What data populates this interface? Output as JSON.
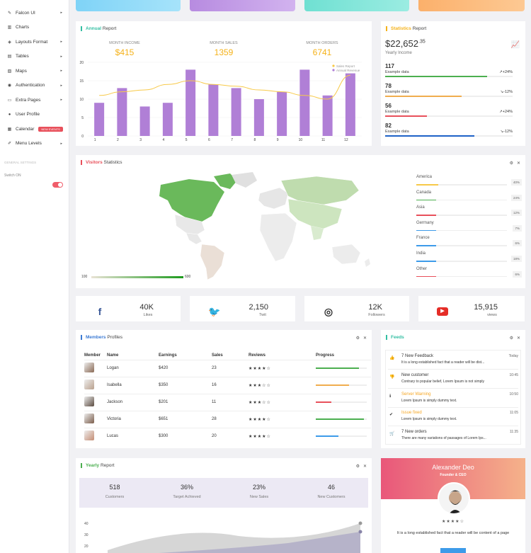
{
  "sidebar": {
    "items": [
      {
        "label": "Falcon UI",
        "icon": "feather-icon",
        "arrow": true
      },
      {
        "label": "Charts",
        "icon": "bar-chart-icon",
        "arrow": false
      },
      {
        "label": "Layouts Format",
        "icon": "layers-icon",
        "arrow": true
      },
      {
        "label": "Tables",
        "icon": "table-icon",
        "arrow": true
      },
      {
        "label": "Maps",
        "icon": "map-icon",
        "arrow": true
      },
      {
        "label": "Authentication",
        "icon": "globe-icon",
        "arrow": true
      },
      {
        "label": "Extra Pages",
        "icon": "monitor-icon",
        "arrow": true
      },
      {
        "label": "User Profile",
        "icon": "user-icon",
        "arrow": false
      },
      {
        "label": "Calendar",
        "icon": "calendar-icon",
        "arrow": false,
        "badge": "NEW EVENTS"
      },
      {
        "label": "Menu Levels",
        "icon": "pencil-icon",
        "arrow": true
      }
    ],
    "section_label": "GENERAL SETTINGS",
    "switch_label": "Switch ON"
  },
  "annual": {
    "title_bold": "Annual",
    "title_rest": "Report",
    "kpis": [
      {
        "label": "MONTH INCOME",
        "value": "$415"
      },
      {
        "label": "MONTH SALES",
        "value": "1359"
      },
      {
        "label": "MONTH ORDERS",
        "value": "6741"
      }
    ],
    "legend": [
      "Sales Report",
      "Annual Revenue"
    ]
  },
  "chart_data": {
    "type": "bar",
    "categories": [
      "1",
      "2",
      "3",
      "4",
      "5",
      "6",
      "7",
      "8",
      "9",
      "10",
      "11",
      "12"
    ],
    "series": [
      {
        "name": "Sales Report",
        "type": "line",
        "values": [
          11,
          12,
          12.5,
          14,
          15,
          14,
          13.5,
          12.5,
          12,
          11,
          10,
          16.5
        ]
      },
      {
        "name": "Annual Revenue",
        "type": "bar",
        "values": [
          9,
          13,
          8,
          9,
          18,
          14,
          13,
          10,
          12,
          18,
          11,
          17
        ]
      }
    ],
    "ylim": [
      0,
      20
    ],
    "yticks": [
      "0",
      "5",
      "10",
      "15",
      "20"
    ],
    "colors": {
      "bar": "#b07fd6",
      "line": "#f7c948"
    }
  },
  "statistics": {
    "title_bold": "Statistics",
    "title_rest": "Report",
    "value": "$22,652",
    "sup": ".35",
    "sub": "Yearly Income",
    "rows": [
      {
        "value": "117",
        "label": "Example data",
        "change": "+24%",
        "arrow": "↗",
        "pct": 0.8,
        "color": "#4caf50"
      },
      {
        "value": "78",
        "label": "Example data",
        "change": "-12%",
        "arrow": "↘",
        "pct": 0.6,
        "color": "#f0ad4e"
      },
      {
        "value": "56",
        "label": "Example data",
        "change": "+24%",
        "arrow": "↗",
        "pct": 0.33,
        "color": "#e8505b"
      },
      {
        "value": "82",
        "label": "Example data",
        "change": "-12%",
        "arrow": "↘",
        "pct": 0.7,
        "color": "#1e62c7"
      }
    ]
  },
  "visitors": {
    "title_bold": "Visitors",
    "title_rest": "Statistics",
    "scale_min": "100",
    "scale_max": "600",
    "rows": [
      {
        "name": "America",
        "pct": "40%",
        "value": 0.4,
        "color": "#f7c948"
      },
      {
        "name": "Canada",
        "pct": "24%",
        "value": 0.24,
        "color": "#4caf50"
      },
      {
        "name": "Asia",
        "pct": "12%",
        "value": 0.12,
        "color": "#e8505b"
      },
      {
        "name": "Germany",
        "pct": "7%",
        "value": 0.07,
        "color": "#3d9be9"
      },
      {
        "name": "France",
        "pct": "6%",
        "value": 0.06,
        "color": "#3d9be9"
      },
      {
        "name": "India",
        "pct": "18%",
        "value": 0.18,
        "color": "#3d9be9"
      },
      {
        "name": "Other",
        "pct": "6%",
        "value": 0.06,
        "color": "#e8505b"
      }
    ]
  },
  "social": [
    {
      "icon": "facebook-icon",
      "value": "40K",
      "label": "Likes",
      "color": "#3b5998"
    },
    {
      "icon": "twitter-icon",
      "value": "2,150",
      "label": "Twit",
      "color": "#1da1f2"
    },
    {
      "icon": "instagram-icon",
      "value": "12K",
      "label": "Followers",
      "color": "#333333"
    },
    {
      "icon": "youtube-icon",
      "value": "15,915",
      "label": "views",
      "color": "#e52d27"
    }
  ],
  "members": {
    "title_bold": "Members",
    "title_rest": "Profiles",
    "headers": [
      "Member",
      "Name",
      "Earnings",
      "Sales",
      "Reviews",
      "Progress"
    ],
    "rows": [
      {
        "name": "Logan",
        "earnings": "$420",
        "sales": "23",
        "stars": "★★★★☆",
        "progress": 0.85,
        "color": "#4caf50"
      },
      {
        "name": "Isabella",
        "earnings": "$350",
        "sales": "16",
        "stars": "★★★☆☆",
        "progress": 0.65,
        "color": "#f0ad4e"
      },
      {
        "name": "Jackson",
        "earnings": "$201",
        "sales": "11",
        "stars": "★★★☆☆",
        "progress": 0.3,
        "color": "#e8505b"
      },
      {
        "name": "Victoria",
        "earnings": "$651",
        "sales": "28",
        "stars": "★★★★☆",
        "progress": 0.95,
        "color": "#4caf50"
      },
      {
        "name": "Lucas",
        "earnings": "$300",
        "sales": "20",
        "stars": "★★★★☆",
        "progress": 0.45,
        "color": "#3d9be9"
      }
    ]
  },
  "feeds": {
    "title_bold": "Feeds",
    "items": [
      {
        "icon": "thumb-up-icon",
        "title": "7 New Feedback",
        "desc": "It is a long established fact that a reader will be dist...",
        "time": "Today",
        "color": "#333333"
      },
      {
        "icon": "thumb-down-icon",
        "title": "New customer",
        "desc": "Contrary to popular belief, Lorem Ipsum is not simply",
        "time": "10:45",
        "color": "#333333"
      },
      {
        "icon": "info-icon",
        "title": "Server Warning",
        "desc": "Lorem Ipsum is simply dummy text.",
        "time": "10:50",
        "color": "#f5a623"
      },
      {
        "icon": "check-icon",
        "title": "Issue fixed",
        "desc": "Lorem Ipsum is simply dummy text.",
        "time": "11:05",
        "color": "#f5a623"
      },
      {
        "icon": "cart-icon",
        "title": "7 New orders",
        "desc": "There are many variations of passages of Lorem Ips...",
        "time": "11:35",
        "color": "#333333"
      }
    ]
  },
  "yearly": {
    "title_bold": "Yearly",
    "title_rest": "Report",
    "stats": [
      {
        "value": "518",
        "label": "Customers"
      },
      {
        "value": "36%",
        "label": "Target Achieved"
      },
      {
        "value": "23%",
        "label": "New Sales"
      },
      {
        "value": "46",
        "label": "New Customers"
      }
    ],
    "yticks": [
      "40",
      "30",
      "20"
    ]
  },
  "profile": {
    "name": "Alexander Deo",
    "role": "Founder & CEO",
    "stars": "★★★★☆",
    "text": "It is a long established fact that a reader will be content of a page"
  }
}
